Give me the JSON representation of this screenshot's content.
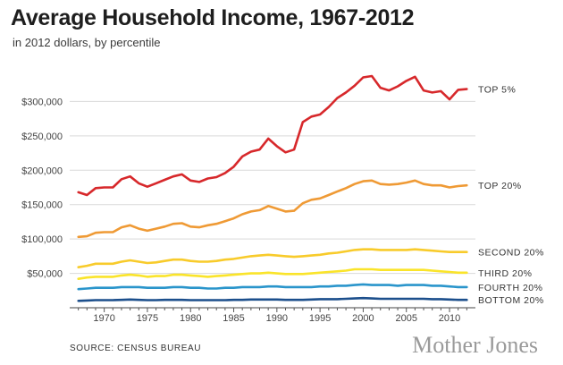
{
  "chart_data": {
    "type": "line",
    "title": "Average Household Income, 1967-2012",
    "subtitle": "in 2012 dollars, by percentile",
    "source": "SOURCE: CENSUS BUREAU",
    "brand": "Mother Jones",
    "xlim": [
      1966,
      2013
    ],
    "ylim": [
      0,
      350000
    ],
    "x_ticks": [
      1970,
      1975,
      1980,
      1985,
      1990,
      1995,
      2000,
      2005,
      2010
    ],
    "y_ticks": [
      {
        "value": 50000,
        "label": "$50,000"
      },
      {
        "value": 100000,
        "label": "$100,000"
      },
      {
        "value": 150000,
        "label": "$150,000"
      },
      {
        "value": 200000,
        "label": "$200,000"
      },
      {
        "value": 250000,
        "label": "$250,000"
      },
      {
        "value": 300000,
        "label": "$300,000"
      }
    ],
    "x": [
      1967,
      1968,
      1969,
      1970,
      1971,
      1972,
      1973,
      1974,
      1975,
      1976,
      1977,
      1978,
      1979,
      1980,
      1981,
      1982,
      1983,
      1984,
      1985,
      1986,
      1987,
      1988,
      1989,
      1990,
      1991,
      1992,
      1993,
      1994,
      1995,
      1996,
      1997,
      1998,
      1999,
      2000,
      2001,
      2002,
      2003,
      2004,
      2005,
      2006,
      2007,
      2008,
      2009,
      2010,
      2011,
      2012
    ],
    "series": [
      {
        "name": "TOP 5%",
        "color": "#d7282b",
        "values": [
          168000,
          164000,
          174000,
          175000,
          175000,
          187000,
          191000,
          181000,
          176000,
          181000,
          186000,
          191000,
          194000,
          185000,
          183000,
          188000,
          190000,
          196000,
          205000,
          220000,
          227000,
          230000,
          246000,
          235000,
          226000,
          230000,
          270000,
          278000,
          281000,
          292000,
          305000,
          313000,
          323000,
          335000,
          337000,
          320000,
          316000,
          322000,
          330000,
          336000,
          316000,
          313000,
          315000,
          303000,
          317000,
          318000
        ]
      },
      {
        "name": "TOP 20%",
        "color": "#ef9a35",
        "values": [
          103000,
          104000,
          109000,
          110000,
          110000,
          117000,
          120000,
          115000,
          112000,
          115000,
          118000,
          122000,
          123000,
          118000,
          117000,
          120000,
          122000,
          126000,
          130000,
          136000,
          140000,
          142000,
          148000,
          144000,
          140000,
          141000,
          152000,
          157000,
          159000,
          164000,
          169000,
          174000,
          180000,
          184000,
          185000,
          180000,
          179000,
          180000,
          182000,
          185000,
          180000,
          178000,
          178000,
          175000,
          177000,
          178000
        ]
      },
      {
        "name": "SECOND 20%",
        "color": "#f8cb2b",
        "values": [
          59000,
          61000,
          64000,
          64000,
          64000,
          67000,
          69000,
          67000,
          65000,
          66000,
          68000,
          70000,
          70000,
          68000,
          67000,
          67000,
          68000,
          70000,
          71000,
          73000,
          75000,
          76000,
          77000,
          76000,
          75000,
          74000,
          75000,
          76000,
          77000,
          79000,
          80000,
          82000,
          84000,
          85000,
          85000,
          84000,
          84000,
          84000,
          84000,
          85000,
          84000,
          83000,
          82000,
          81000,
          81000,
          81000
        ]
      },
      {
        "name": "THIRD 20%",
        "color": "#fae42a",
        "values": [
          42000,
          44000,
          45000,
          45000,
          45000,
          47000,
          48000,
          47000,
          45000,
          46000,
          46000,
          48000,
          48000,
          47000,
          46000,
          45000,
          46000,
          47000,
          48000,
          49000,
          50000,
          50000,
          51000,
          50000,
          49000,
          49000,
          49000,
          50000,
          51000,
          52000,
          53000,
          54000,
          56000,
          56000,
          56000,
          55000,
          55000,
          55000,
          55000,
          55000,
          55000,
          54000,
          53000,
          52000,
          51000,
          51000
        ]
      },
      {
        "name": "FOURTH 20%",
        "color": "#2a95cb",
        "values": [
          27000,
          28000,
          29000,
          29000,
          29000,
          30000,
          30000,
          30000,
          29000,
          29000,
          29000,
          30000,
          30000,
          29000,
          29000,
          28000,
          28000,
          29000,
          29000,
          30000,
          30000,
          30000,
          31000,
          31000,
          30000,
          30000,
          30000,
          30000,
          31000,
          31000,
          32000,
          32000,
          33000,
          34000,
          33000,
          33000,
          33000,
          32000,
          33000,
          33000,
          33000,
          32000,
          32000,
          31000,
          30000,
          30000
        ]
      },
      {
        "name": "BOTTOM 20%",
        "color": "#1c4f8c",
        "values": [
          10000,
          10500,
          11000,
          11000,
          11000,
          11500,
          12000,
          11500,
          11000,
          11000,
          11500,
          11500,
          11500,
          11000,
          11000,
          11000,
          11000,
          11000,
          11500,
          11500,
          12000,
          12000,
          12000,
          12000,
          11500,
          11500,
          11500,
          12000,
          12500,
          12500,
          12500,
          13000,
          13500,
          14000,
          13500,
          13000,
          13000,
          13000,
          13000,
          13000,
          13000,
          12500,
          12500,
          12000,
          11500,
          11500
        ]
      }
    ]
  }
}
